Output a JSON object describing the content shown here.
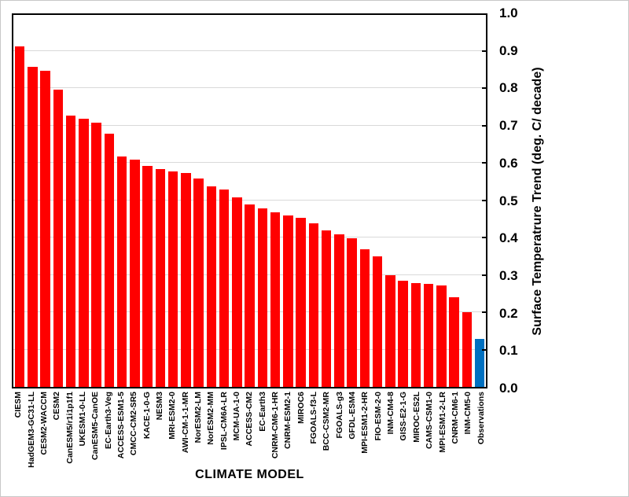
{
  "chart_data": {
    "type": "bar",
    "title": "",
    "xlabel": "CLIMATE MODEL",
    "ylabel": "Surface Temperatrure Trend (deg. C/ decade)",
    "ylim": [
      0.0,
      1.0
    ],
    "yticks": [
      "0.0",
      "0.1",
      "0.2",
      "0.3",
      "0.4",
      "0.5",
      "0.6",
      "0.7",
      "0.8",
      "0.9",
      "1.0"
    ],
    "grid": true,
    "legend": null,
    "categories": [
      "CIESM",
      "HadGEM3-GC31-LL",
      "CESM2-WACCM",
      "CESM2",
      "CanESM5/r1i1p1f1",
      "UKESM1-0-LL",
      "CanESM5-CanOE",
      "EC-Earth3-Veg",
      "ACCESS-ESM1-5",
      "CMCC-CM2-SR5",
      "KACE-1-0-G",
      "NESM3",
      "MRI-ESM2-0",
      "AWI-CM-1-1-MR",
      "NorESM2-LM",
      "NorESM2-MM",
      "IPSL-CM6A-LR",
      "MCM-UA-1-0",
      "ACCESS-CM2",
      "EC-Earth3",
      "CNRM-CM6-1-HR",
      "CNRM-ESM2-1",
      "MIROC6",
      "FGOALS-f3-L",
      "BCC-CSM2-MR",
      "FGOALS-g3",
      "GFDL-ESM4",
      "MPI-ESM1-2-HR",
      "FIO-ESM-2-0",
      "INM-CM4-8",
      "GISS-E2-1-G",
      "MIROC-ES2L",
      "CAMS-CSM1-0",
      "MPI-ESM1-2-LR",
      "CNRM-CM6-1",
      "INM-CM5-0",
      "Observations"
    ],
    "values": [
      0.915,
      0.86,
      0.85,
      0.8,
      0.73,
      0.72,
      0.71,
      0.68,
      0.62,
      0.61,
      0.595,
      0.585,
      0.58,
      0.575,
      0.56,
      0.54,
      0.53,
      0.51,
      0.49,
      0.48,
      0.47,
      0.46,
      0.455,
      0.44,
      0.42,
      0.41,
      0.4,
      0.37,
      0.35,
      0.3,
      0.285,
      0.28,
      0.277,
      0.273,
      0.24,
      0.2,
      0.13
    ],
    "model_bar_color": "#FF0000",
    "observations_bar_color": "#0070C0",
    "observation_category": "Observations",
    "gridline_color": "#d9d9d9"
  }
}
